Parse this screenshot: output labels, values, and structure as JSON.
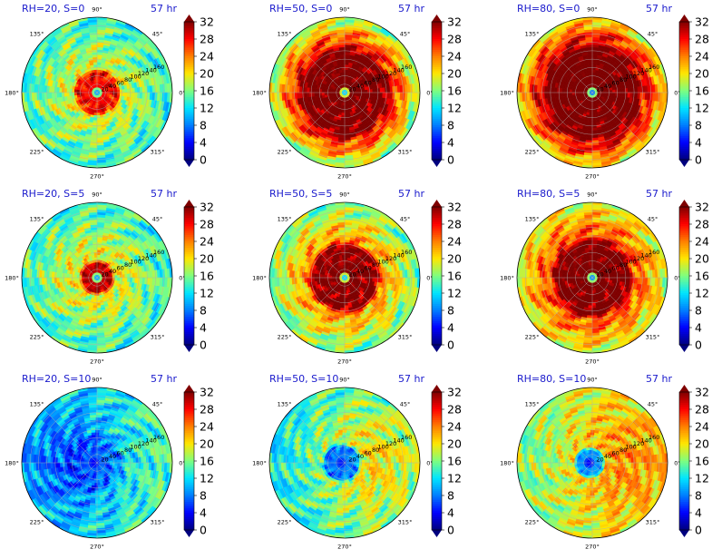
{
  "figure": {
    "colorbar": {
      "ticks": [
        "0",
        "4",
        "8",
        "12",
        "16",
        "20",
        "24",
        "28",
        "32"
      ],
      "colors": [
        "#00007f",
        "#0000ff",
        "#007fff",
        "#00e5ff",
        "#7fff7f",
        "#ffe600",
        "#ff7f00",
        "#ff0000",
        "#7f0000"
      ]
    },
    "polar_axis": {
      "angle_labels": [
        "0°",
        "45°",
        "90°",
        "135°",
        "180°",
        "225°",
        "270°",
        "315°"
      ],
      "radial_labels": [
        "20",
        "40",
        "60",
        "80",
        "100",
        "120",
        "140",
        "160"
      ]
    }
  },
  "panels": [
    {
      "left_title": "RH=20, S=0",
      "right_title": "57 hr"
    },
    {
      "left_title": "RH=50, S=0",
      "right_title": "57 hr"
    },
    {
      "left_title": "RH=80, S=0",
      "right_title": "57 hr"
    },
    {
      "left_title": "RH=20, S=5",
      "right_title": "57 hr"
    },
    {
      "left_title": "RH=50, S=5",
      "right_title": "57 hr"
    },
    {
      "left_title": "RH=80, S=5",
      "right_title": "57 hr"
    },
    {
      "left_title": "RH=20, S=10",
      "right_title": "57 hr"
    },
    {
      "left_title": "RH=50, S=10",
      "right_title": "57 hr"
    },
    {
      "left_title": "RH=80, S=10",
      "right_title": "57 hr"
    }
  ],
  "chart_data": {
    "type": "heatmap",
    "projection": "polar",
    "grid": true,
    "color_range": [
      0,
      32
    ],
    "colorbar_ticks": [
      0,
      4,
      8,
      12,
      16,
      20,
      24,
      28,
      32
    ],
    "theta_ticks_deg": [
      0,
      45,
      90,
      135,
      180,
      225,
      270,
      315
    ],
    "r_ticks": [
      20,
      40,
      60,
      80,
      100,
      120,
      140,
      160
    ],
    "r_range": [
      0,
      180
    ],
    "panels": [
      {
        "title": "RH=20, S=0",
        "time": "57 hr",
        "center_value": 10,
        "core_value": 28,
        "core_radius": 55,
        "ring_value": 18,
        "edge_value": 14,
        "shear_offset": 0
      },
      {
        "title": "RH=50, S=0",
        "time": "57 hr",
        "center_value": 12,
        "core_value": 33,
        "core_radius": 110,
        "ring_value": 26,
        "edge_value": 17,
        "shear_offset": 0
      },
      {
        "title": "RH=80, S=0",
        "time": "57 hr",
        "center_value": 8,
        "core_value": 34,
        "core_radius": 115,
        "ring_value": 28,
        "edge_value": 20,
        "shear_offset": 0
      },
      {
        "title": "RH=20, S=5",
        "time": "57 hr",
        "center_value": 10,
        "core_value": 30,
        "core_radius": 40,
        "ring_value": 19,
        "edge_value": 14,
        "shear_offset": 0
      },
      {
        "title": "RH=50, S=5",
        "time": "57 hr",
        "center_value": 12,
        "core_value": 32,
        "core_radius": 85,
        "ring_value": 22,
        "edge_value": 16,
        "shear_offset": 0
      },
      {
        "title": "RH=80, S=5",
        "time": "57 hr",
        "center_value": 9,
        "core_value": 33,
        "core_radius": 95,
        "ring_value": 25,
        "edge_value": 19,
        "shear_offset": 0
      },
      {
        "title": "RH=20, S=10",
        "time": "57 hr",
        "center_value": 4,
        "core_value": 7,
        "core_radius": 70,
        "ring_value": 10,
        "edge_value": 12,
        "shear_offset": -25
      },
      {
        "title": "RH=50, S=10",
        "time": "57 hr",
        "center_value": 5,
        "core_value": 8,
        "core_radius": 45,
        "ring_value": 18,
        "edge_value": 15,
        "shear_offset": -30
      },
      {
        "title": "RH=80, S=10",
        "time": "57 hr",
        "center_value": 4,
        "core_value": 9,
        "core_radius": 35,
        "ring_value": 21,
        "edge_value": 19,
        "shear_offset": -25
      }
    ]
  }
}
